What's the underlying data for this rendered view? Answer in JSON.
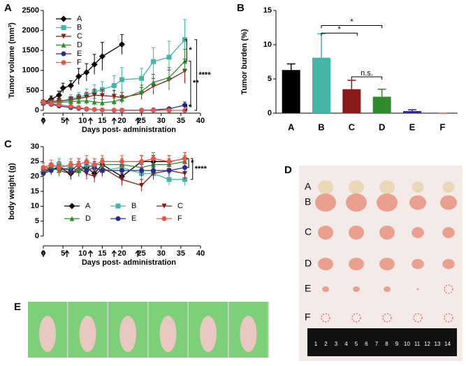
{
  "chart_data": [
    {
      "type": "line",
      "panel": "A",
      "ylabel": "Tumor volume (mm³)",
      "xlabel": "Days post- administration",
      "xlim": [
        0,
        40
      ],
      "xticks": [
        0,
        5,
        10,
        15,
        20,
        25,
        30,
        35,
        40
      ],
      "ylim": [
        0,
        2500
      ],
      "yticks": [
        0,
        500,
        1000,
        1500,
        2000,
        2500
      ],
      "legend": "upper left",
      "annotations": [
        "*",
        "**",
        "****",
        "*"
      ],
      "series": [
        {
          "name": "A",
          "color": "#000000",
          "marker": "diamond",
          "x": [
            0,
            2,
            4,
            5,
            7,
            9,
            11,
            13,
            15,
            20
          ],
          "values": [
            200,
            280,
            380,
            560,
            620,
            850,
            950,
            1150,
            1350,
            1650
          ],
          "errors": [
            60,
            80,
            100,
            120,
            120,
            200,
            220,
            250,
            350,
            250
          ]
        },
        {
          "name": "B",
          "color": "#45b5a6",
          "marker": "square",
          "x": [
            0,
            2,
            4,
            7,
            9,
            11,
            13,
            15,
            18,
            20,
            25,
            28,
            32,
            36
          ],
          "values": [
            200,
            190,
            210,
            290,
            330,
            380,
            460,
            520,
            620,
            770,
            800,
            1220,
            1330,
            1770
          ],
          "errors": [
            50,
            60,
            80,
            100,
            120,
            150,
            180,
            200,
            250,
            300,
            250,
            350,
            400,
            500
          ]
        },
        {
          "name": "C",
          "color": "#8b1a1a",
          "marker": "tri-down",
          "x": [
            0,
            2,
            4,
            7,
            9,
            11,
            13,
            15,
            18,
            20,
            25,
            28,
            32,
            36
          ],
          "values": [
            200,
            220,
            240,
            260,
            300,
            330,
            380,
            370,
            350,
            320,
            420,
            600,
            760,
            980
          ],
          "errors": [
            50,
            60,
            70,
            80,
            100,
            120,
            150,
            150,
            150,
            130,
            150,
            200,
            250,
            300
          ]
        },
        {
          "name": "D",
          "color": "#2e8b2e",
          "marker": "tri-up",
          "x": [
            0,
            2,
            4,
            7,
            9,
            11,
            13,
            15,
            18,
            20,
            25,
            28,
            32,
            36
          ],
          "values": [
            180,
            190,
            200,
            220,
            230,
            240,
            210,
            190,
            220,
            280,
            480,
            700,
            820,
            1230
          ],
          "errors": [
            50,
            50,
            60,
            70,
            80,
            90,
            90,
            80,
            90,
            100,
            150,
            200,
            250,
            300
          ]
        },
        {
          "name": "E",
          "color": "#2b2b8c",
          "marker": "circle",
          "x": [
            0,
            2,
            4,
            7,
            9,
            11,
            13,
            15,
            18,
            20,
            25,
            28,
            32,
            36
          ],
          "values": [
            190,
            150,
            110,
            70,
            50,
            30,
            20,
            10,
            5,
            5,
            5,
            10,
            40,
            130
          ],
          "errors": [
            40,
            40,
            30,
            30,
            20,
            15,
            10,
            8,
            5,
            5,
            5,
            10,
            30,
            80
          ]
        },
        {
          "name": "F",
          "color": "#e8574b",
          "marker": "circle",
          "x": [
            0,
            2,
            4,
            7,
            9,
            11,
            13,
            15,
            18,
            20,
            25,
            28,
            32,
            36
          ],
          "values": [
            200,
            170,
            140,
            100,
            70,
            40,
            20,
            10,
            5,
            0,
            0,
            0,
            0,
            0
          ],
          "errors": [
            40,
            40,
            40,
            30,
            30,
            20,
            10,
            10,
            5,
            0,
            0,
            0,
            0,
            0
          ]
        }
      ]
    },
    {
      "type": "bar",
      "panel": "B",
      "ylabel": "Tumor burden (%)",
      "categories": [
        "A",
        "B",
        "C",
        "D",
        "E",
        "F"
      ],
      "values": [
        6.3,
        8.1,
        3.5,
        2.4,
        0.3,
        0
      ],
      "errors": [
        0.9,
        3.5,
        1.3,
        1.1,
        0.2,
        0
      ],
      "colors": [
        "#000000",
        "#45b5a6",
        "#8b1a1a",
        "#2e8b2e",
        "#2b2b8c",
        "#e8574b"
      ],
      "ylim": [
        0,
        15
      ],
      "yticks": [
        0,
        5,
        10,
        15
      ],
      "annotations": [
        "*",
        "*",
        "n.s."
      ]
    },
    {
      "type": "line",
      "panel": "C",
      "ylabel": "body weight (g)",
      "xlabel": "Days post- administration",
      "xlim": [
        0,
        40
      ],
      "xticks": [
        0,
        5,
        10,
        15,
        20,
        25,
        30,
        35,
        40
      ],
      "ylim": [
        0,
        30
      ],
      "yticks": [
        0,
        5,
        10,
        15,
        20,
        25,
        30
      ],
      "legend": "center",
      "annotations": [
        "*",
        "****"
      ],
      "series": [
        {
          "name": "A",
          "color": "#000000",
          "marker": "diamond",
          "x": [
            0,
            2,
            4,
            7,
            9,
            11,
            13,
            15,
            20,
            25,
            28,
            32,
            36
          ],
          "values": [
            21.5,
            22.5,
            23,
            21,
            22,
            23,
            21,
            24,
            20,
            25,
            25,
            25,
            26
          ],
          "errors": [
            1.5,
            1.5,
            2,
            2,
            2,
            2,
            2,
            2,
            2,
            2,
            2,
            2,
            2
          ]
        },
        {
          "name": "B",
          "color": "#45b5a6",
          "marker": "square",
          "x": [
            0,
            2,
            4,
            7,
            9,
            11,
            13,
            15,
            20,
            25,
            28,
            32,
            36
          ],
          "values": [
            22,
            23,
            24,
            23,
            22,
            24,
            23,
            22,
            23,
            21,
            21,
            19,
            19
          ],
          "errors": [
            1.5,
            1.5,
            2,
            2,
            2,
            2,
            2,
            2,
            2,
            2,
            2,
            2,
            2
          ]
        },
        {
          "name": "C",
          "color": "#8b1a1a",
          "marker": "tri-down",
          "x": [
            0,
            2,
            4,
            7,
            9,
            11,
            13,
            15,
            20,
            25,
            28,
            32,
            36
          ],
          "values": [
            22,
            23,
            22,
            21,
            23,
            21,
            20,
            23,
            19,
            17,
            21,
            22,
            21
          ],
          "errors": [
            1.5,
            1.5,
            2,
            2,
            2,
            2,
            2,
            2,
            2,
            2,
            2,
            2,
            2
          ]
        },
        {
          "name": "D",
          "color": "#2e8b2e",
          "marker": "tri-up",
          "x": [
            0,
            2,
            4,
            7,
            9,
            11,
            13,
            15,
            20,
            25,
            28,
            32,
            36
          ],
          "values": [
            23,
            23,
            22,
            23,
            22,
            23,
            24,
            24,
            24,
            23,
            24,
            24,
            25
          ],
          "errors": [
            1.5,
            1.5,
            2,
            2,
            2,
            2,
            2,
            2,
            2,
            2,
            2,
            2,
            2
          ]
        },
        {
          "name": "E",
          "color": "#2b2b8c",
          "marker": "circle",
          "x": [
            0,
            2,
            4,
            7,
            9,
            11,
            13,
            15,
            20,
            25,
            28,
            32,
            36
          ],
          "values": [
            21,
            22,
            23,
            22,
            24,
            22,
            23,
            22,
            22,
            22,
            22,
            22,
            23
          ],
          "errors": [
            1.5,
            1.5,
            2,
            2,
            2,
            2,
            2,
            2,
            2,
            2,
            2,
            2,
            2
          ]
        },
        {
          "name": "F",
          "color": "#e8574b",
          "marker": "circle",
          "x": [
            0,
            2,
            4,
            7,
            9,
            11,
            13,
            15,
            20,
            25,
            28,
            32,
            36
          ],
          "values": [
            23,
            24,
            23,
            24,
            24,
            25,
            24,
            25,
            25,
            25,
            26,
            25,
            26
          ],
          "errors": [
            1.5,
            1.5,
            2,
            2,
            2,
            2,
            2,
            2,
            2,
            2,
            2,
            2,
            2
          ]
        }
      ]
    }
  ],
  "photos": {
    "d_panel": "D",
    "d_rows": [
      "A",
      "B",
      "C",
      "D",
      "E",
      "F"
    ],
    "ruler": [
      "1",
      "2",
      "3",
      "4",
      "5",
      "6",
      "7",
      "8",
      "9",
      "10",
      "11",
      "12",
      "13",
      "14"
    ],
    "e_panel": "E"
  }
}
